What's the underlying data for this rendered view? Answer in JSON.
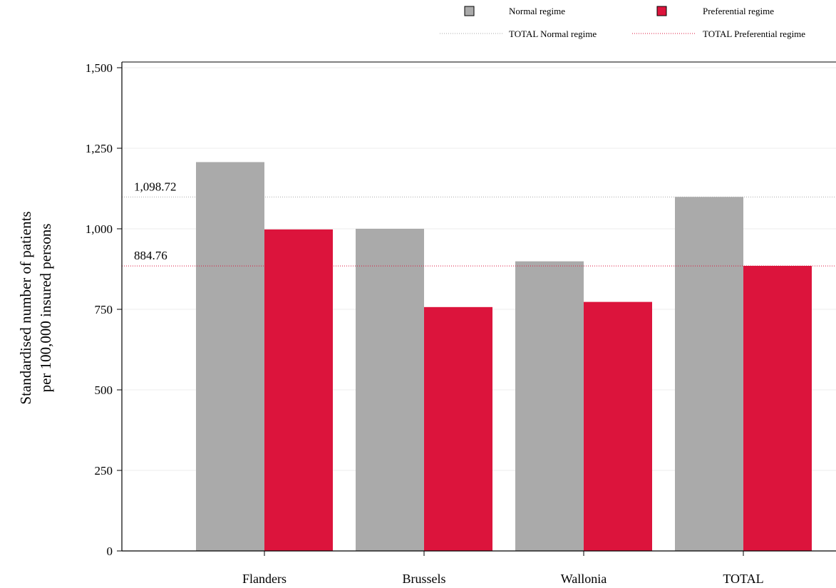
{
  "chart_data": {
    "type": "bar",
    "title": "",
    "xlabel": "",
    "ylabel": [
      "Standardised number of patients",
      "per 100,000 insured persons"
    ],
    "categories": [
      "Flanders",
      "Brussels",
      "Wallonia",
      "TOTAL"
    ],
    "series": [
      {
        "name": "Normal regime",
        "color": "#aaaaaa",
        "values": [
          1207,
          1000,
          899,
          1099
        ]
      },
      {
        "name": "Preferential regime",
        "color": "#dc143c",
        "values": [
          998,
          757,
          773,
          885
        ]
      }
    ],
    "reference_lines": [
      {
        "name": "TOTAL Normal regime",
        "value": 1098.72,
        "label": "1,098.72",
        "color": "#aaaaaa",
        "style": "dotted"
      },
      {
        "name": "TOTAL Preferential regime",
        "value": 884.76,
        "label": "884.76",
        "color": "#dc143c",
        "style": "dotted"
      }
    ],
    "ylim": [
      0,
      1500
    ],
    "yticks": [
      0,
      250,
      500,
      750,
      1000,
      1250,
      1500
    ],
    "ytick_labels": [
      "0",
      "250",
      "500",
      "750",
      "1,000",
      "1,250",
      "1,500"
    ],
    "grid": true,
    "legend_position": "top-right"
  }
}
